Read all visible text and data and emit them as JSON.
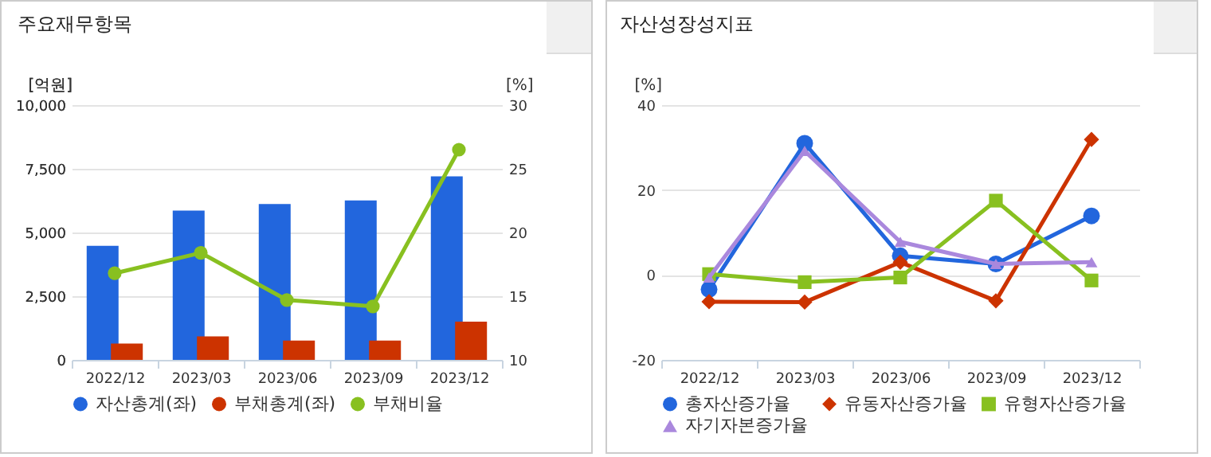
{
  "chart_data": [
    {
      "type": "bar",
      "title": "주요재무항목",
      "ylabel": "[억원]",
      "y2label": "[%]",
      "categories": [
        "2022/12",
        "2023/03",
        "2023/06",
        "2023/09",
        "2023/12"
      ],
      "series": [
        {
          "name": "자산총계(좌)",
          "color": "#2266dd",
          "values": [
            4480,
            5860,
            6120,
            6260,
            7200
          ]
        },
        {
          "name": "부채총계(좌)",
          "color": "#cc3300",
          "values": [
            640,
            920,
            760,
            760,
            1500
          ]
        },
        {
          "name": "부채비율",
          "type": "line",
          "axis": "y2",
          "marker": "circle",
          "color": "#88c020",
          "values": [
            16.8,
            18.4,
            14.7,
            14.2,
            26.5
          ]
        }
      ],
      "ylim": [
        0,
        10000
      ],
      "yticks": [
        0,
        {
          "value": 2500,
          "label": "2,500"
        },
        {
          "value": 5000,
          "label": "5,000"
        },
        {
          "value": 7500,
          "label": "7,500"
        },
        {
          "value": 10000,
          "label": "10,000"
        }
      ],
      "y2lim": [
        10,
        30
      ],
      "y2ticks": [
        10,
        15,
        20,
        25,
        30
      ],
      "grid": "y",
      "legend": "bottom"
    },
    {
      "type": "line",
      "title": "자산성장성지표",
      "ylabel": "[%]",
      "categories": [
        "2022/12",
        "2023/03",
        "2023/06",
        "2023/09",
        "2023/12"
      ],
      "series": [
        {
          "name": "총자산증가율",
          "color": "#2266dd",
          "marker": "circle",
          "values": [
            -3.4,
            31,
            4.5,
            2.6,
            13.9
          ]
        },
        {
          "name": "유동자산증가율",
          "color": "#cc3300",
          "marker": "diamond",
          "values": [
            -6.3,
            -6.4,
            3,
            -6.1,
            31.9
          ]
        },
        {
          "name": "유형자산증가율",
          "color": "#88c020",
          "marker": "square",
          "values": [
            0.2,
            -1.7,
            -0.6,
            17.5,
            -1.3
          ]
        },
        {
          "name": "자기자본증가율",
          "color": "#aa88dd",
          "marker": "triangle",
          "values": [
            -0.6,
            29.2,
            7.8,
            2.6,
            3
          ]
        }
      ],
      "ylim": [
        -20,
        40
      ],
      "yticks": [
        -20,
        0,
        20,
        40
      ],
      "grid": "y",
      "legend": "bottom"
    }
  ]
}
